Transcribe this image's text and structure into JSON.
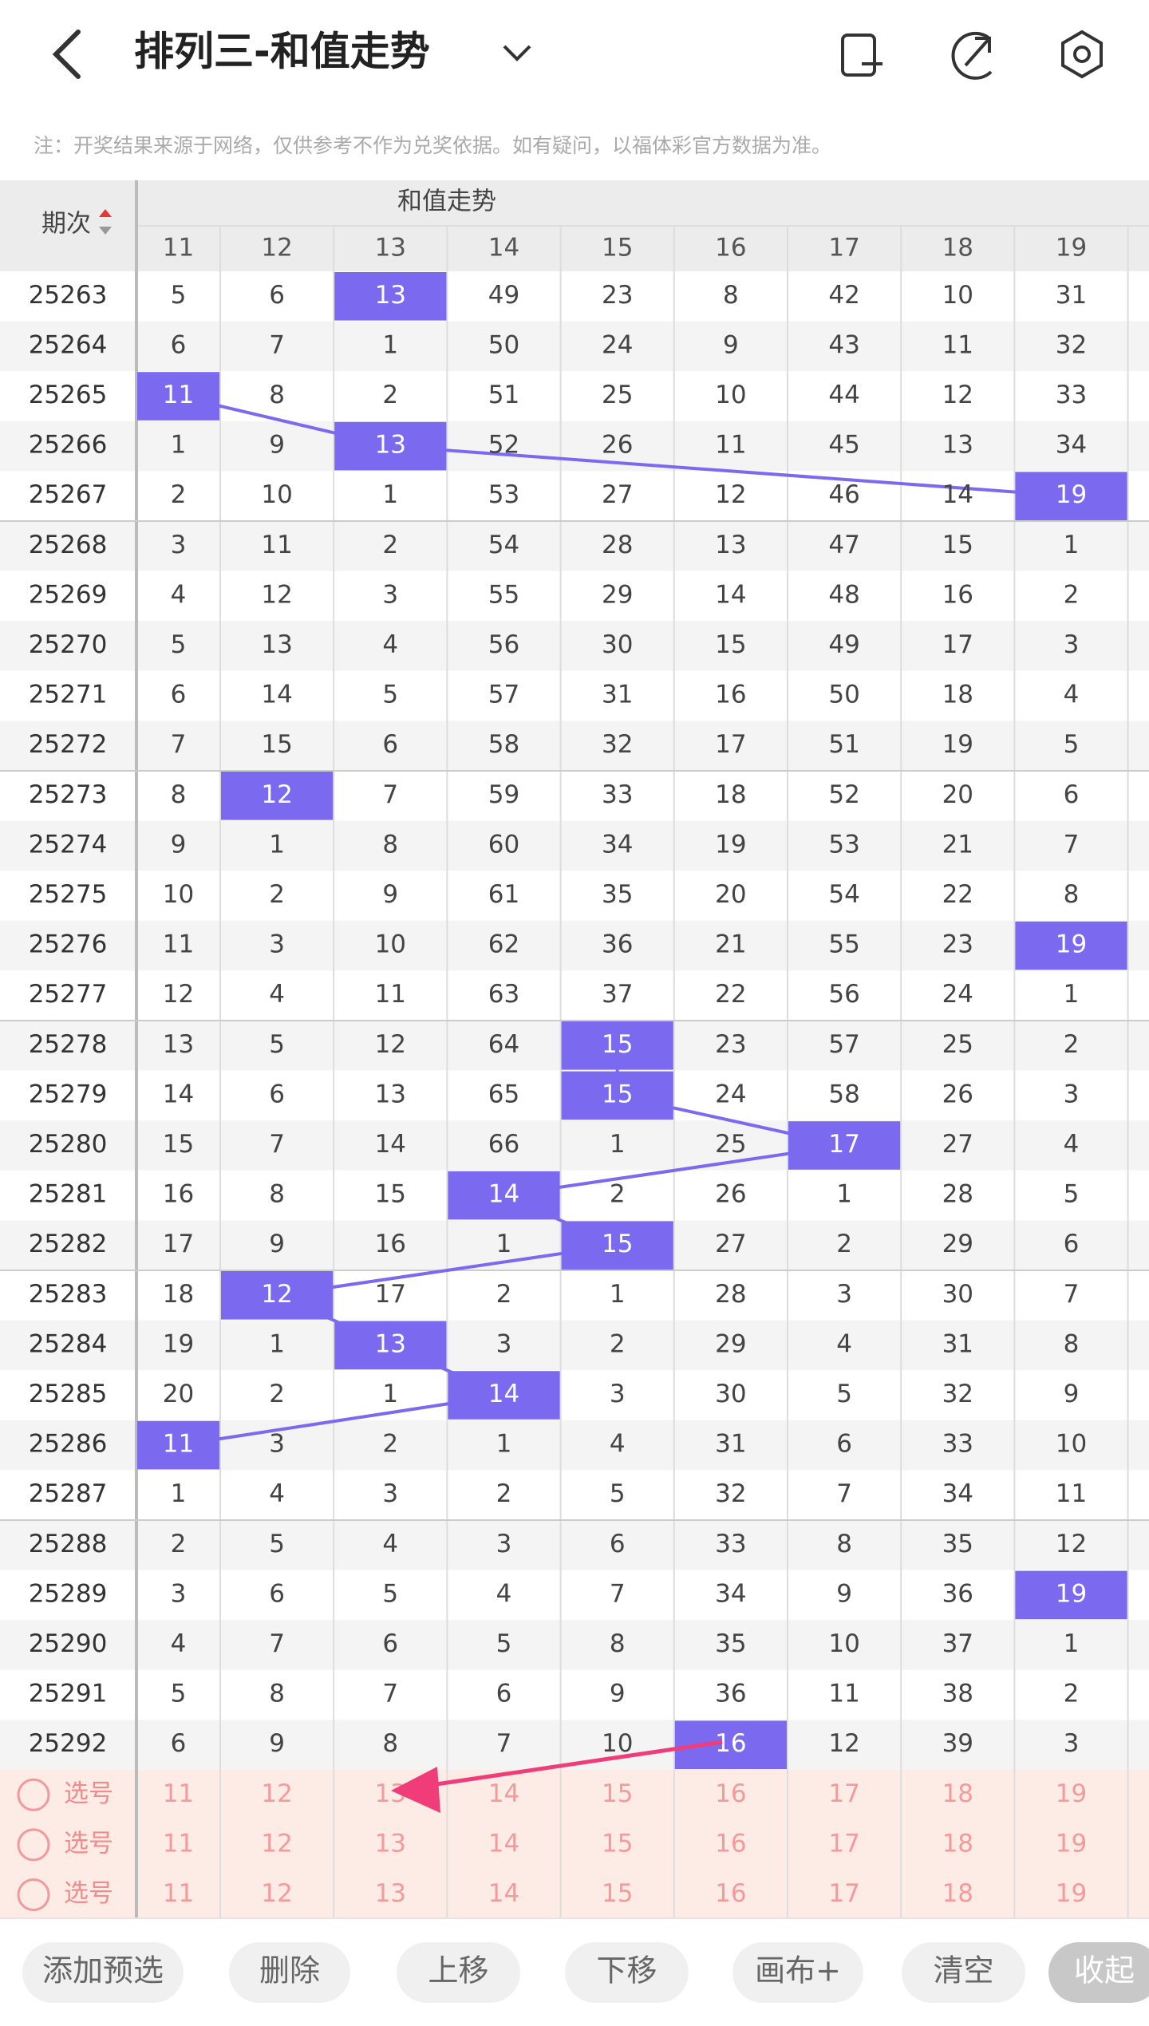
{
  "header": {
    "title": "排列三-和值走势"
  },
  "notice": "注：开奖结果来源于网络，仅供参考不作为兑奖依据。如有疑问，以福体彩官方数据为准。",
  "table": {
    "group_title": "和值走势",
    "period_label": "期次",
    "columns": [
      11,
      12,
      13,
      14,
      15,
      16,
      17,
      18,
      19
    ],
    "rows": [
      {
        "period": "25263",
        "cells": [
          5,
          6,
          13,
          49,
          23,
          8,
          42,
          10,
          31
        ],
        "highlighted_column": 2
      },
      {
        "period": "25264",
        "cells": [
          6,
          7,
          1,
          50,
          24,
          9,
          43,
          11,
          32
        ],
        "highlighted_column": null
      },
      {
        "period": "25265",
        "cells": [
          11,
          8,
          2,
          51,
          25,
          10,
          44,
          12,
          33
        ],
        "highlighted_column": 0
      },
      {
        "period": "25266",
        "cells": [
          1,
          9,
          13,
          52,
          26,
          11,
          45,
          13,
          34
        ],
        "highlighted_column": 2
      },
      {
        "period": "25267",
        "cells": [
          2,
          10,
          1,
          53,
          27,
          12,
          46,
          14,
          19
        ],
        "highlighted_column": 8
      },
      {
        "period": "25268",
        "cells": [
          3,
          11,
          2,
          54,
          28,
          13,
          47,
          15,
          1
        ],
        "highlighted_column": null
      },
      {
        "period": "25269",
        "cells": [
          4,
          12,
          3,
          55,
          29,
          14,
          48,
          16,
          2
        ],
        "highlighted_column": null
      },
      {
        "period": "25270",
        "cells": [
          5,
          13,
          4,
          56,
          30,
          15,
          49,
          17,
          3
        ],
        "highlighted_column": null
      },
      {
        "period": "25271",
        "cells": [
          6,
          14,
          5,
          57,
          31,
          16,
          50,
          18,
          4
        ],
        "highlighted_column": null
      },
      {
        "period": "25272",
        "cells": [
          7,
          15,
          6,
          58,
          32,
          17,
          51,
          19,
          5
        ],
        "highlighted_column": null
      },
      {
        "period": "25273",
        "cells": [
          8,
          12,
          7,
          59,
          33,
          18,
          52,
          20,
          6
        ],
        "highlighted_column": 1
      },
      {
        "period": "25274",
        "cells": [
          9,
          1,
          8,
          60,
          34,
          19,
          53,
          21,
          7
        ],
        "highlighted_column": null
      },
      {
        "period": "25275",
        "cells": [
          10,
          2,
          9,
          61,
          35,
          20,
          54,
          22,
          8
        ],
        "highlighted_column": null
      },
      {
        "period": "25276",
        "cells": [
          11,
          3,
          10,
          62,
          36,
          21,
          55,
          23,
          19
        ],
        "highlighted_column": 8
      },
      {
        "period": "25277",
        "cells": [
          12,
          4,
          11,
          63,
          37,
          22,
          56,
          24,
          1
        ],
        "highlighted_column": null
      },
      {
        "period": "25278",
        "cells": [
          13,
          5,
          12,
          64,
          15,
          23,
          57,
          25,
          2
        ],
        "highlighted_column": 4
      },
      {
        "period": "25279",
        "cells": [
          14,
          6,
          13,
          65,
          15,
          24,
          58,
          26,
          3
        ],
        "highlighted_column": 4
      },
      {
        "period": "25280",
        "cells": [
          15,
          7,
          14,
          66,
          1,
          25,
          17,
          27,
          4
        ],
        "highlighted_column": 6
      },
      {
        "period": "25281",
        "cells": [
          16,
          8,
          15,
          14,
          2,
          26,
          1,
          28,
          5
        ],
        "highlighted_column": 3
      },
      {
        "period": "25282",
        "cells": [
          17,
          9,
          16,
          1,
          15,
          27,
          2,
          29,
          6
        ],
        "highlighted_column": 4
      },
      {
        "period": "25283",
        "cells": [
          18,
          12,
          17,
          2,
          1,
          28,
          3,
          30,
          7
        ],
        "highlighted_column": 1
      },
      {
        "period": "25284",
        "cells": [
          19,
          1,
          13,
          3,
          2,
          29,
          4,
          31,
          8
        ],
        "highlighted_column": 2
      },
      {
        "period": "25285",
        "cells": [
          20,
          2,
          1,
          14,
          3,
          30,
          5,
          32,
          9
        ],
        "highlighted_column": 3
      },
      {
        "period": "25286",
        "cells": [
          11,
          3,
          2,
          1,
          4,
          31,
          6,
          33,
          10
        ],
        "highlighted_column": 0
      },
      {
        "period": "25287",
        "cells": [
          1,
          4,
          3,
          2,
          5,
          32,
          7,
          34,
          11
        ],
        "highlighted_column": null
      },
      {
        "period": "25288",
        "cells": [
          2,
          5,
          4,
          3,
          6,
          33,
          8,
          35,
          12
        ],
        "highlighted_column": null
      },
      {
        "period": "25289",
        "cells": [
          3,
          6,
          5,
          4,
          7,
          34,
          9,
          36,
          19
        ],
        "highlighted_column": 8
      },
      {
        "period": "25290",
        "cells": [
          4,
          7,
          6,
          5,
          8,
          35,
          10,
          37,
          1
        ],
        "highlighted_column": null
      },
      {
        "period": "25291",
        "cells": [
          5,
          8,
          7,
          6,
          9,
          36,
          11,
          38,
          2
        ],
        "highlighted_column": null
      },
      {
        "period": "25292",
        "cells": [
          6,
          9,
          8,
          7,
          10,
          16,
          12,
          39,
          3
        ],
        "highlighted_column": 5
      }
    ],
    "pick_rows": [
      {
        "label": "选号",
        "cells": [
          11,
          12,
          13,
          14,
          15,
          16,
          17,
          18,
          19
        ]
      },
      {
        "label": "选号",
        "cells": [
          11,
          12,
          13,
          14,
          15,
          16,
          17,
          18,
          19
        ]
      },
      {
        "label": "选号",
        "cells": [
          11,
          12,
          13,
          14,
          15,
          16,
          17,
          18,
          19
        ]
      }
    ]
  },
  "toolbar": {
    "buttons": [
      "添加预选",
      "删除",
      "上移",
      "下移",
      "画布+",
      "清空",
      "收起"
    ]
  }
}
